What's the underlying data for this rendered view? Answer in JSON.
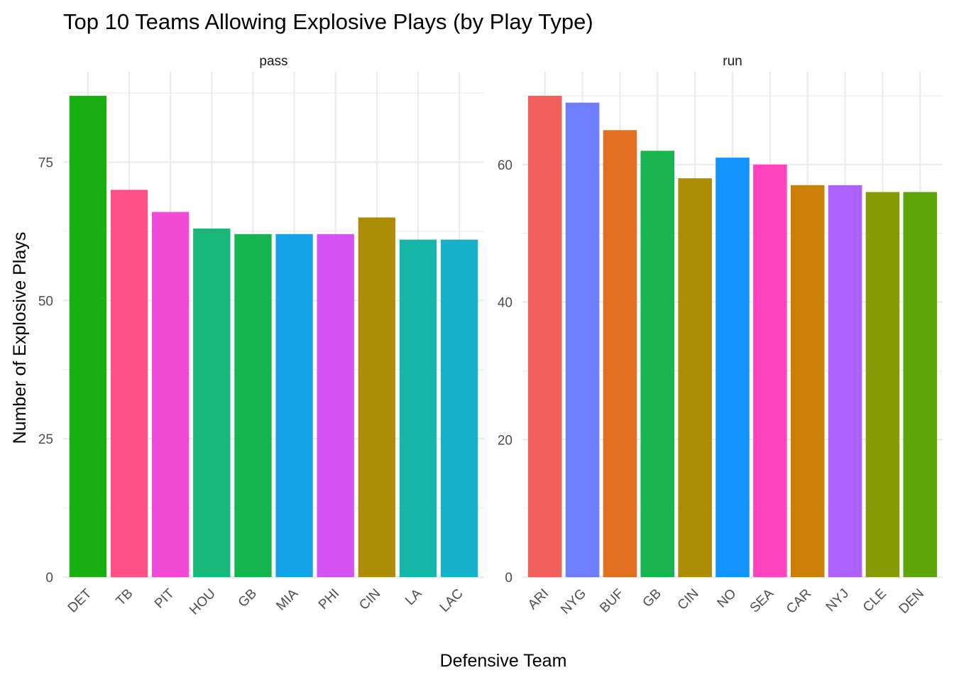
{
  "chart_data": {
    "type": "bar",
    "title": "Top 10 Teams Allowing Explosive Plays (by Play Type)",
    "xlabel": "Defensive Team",
    "ylabel": "Number of Explosive Plays",
    "grid": true,
    "legend": "none",
    "facets": [
      {
        "name": "pass",
        "categories": [
          "DET",
          "TB",
          "PIT",
          "HOU",
          "GB",
          "MIA",
          "PHI",
          "CIN",
          "LA",
          "LAC"
        ],
        "values": [
          87,
          70,
          66,
          63,
          62,
          62,
          62,
          65,
          61,
          61
        ],
        "colors": [
          "#1AAF13",
          "#FF5087",
          "#F24BD8",
          "#17B87A",
          "#15B44F",
          "#16A2E8",
          "#D553F4",
          "#AD8C06",
          "#16B6AA",
          "#17B0CD"
        ],
        "ylim": [
          0,
          91.35
        ],
        "yticks": [
          0,
          25,
          50,
          75
        ]
      },
      {
        "name": "run",
        "categories": [
          "ARI",
          "NYG",
          "BUF",
          "GB",
          "CIN",
          "NO",
          "SEA",
          "CAR",
          "NYJ",
          "CLE",
          "DEN"
        ],
        "values": [
          70,
          69,
          65,
          62,
          58,
          61,
          60,
          57,
          57,
          56,
          56
        ],
        "colors": [
          "#F2605C",
          "#6E7EFF",
          "#E07020",
          "#18B44F",
          "#AD8C06",
          "#1493FF",
          "#FF44BD",
          "#CB7F05",
          "#AD62FF",
          "#869B05",
          "#5DA50A"
        ],
        "ylim": [
          0,
          73.5
        ],
        "yticks": [
          0,
          20,
          40,
          60
        ]
      }
    ]
  }
}
